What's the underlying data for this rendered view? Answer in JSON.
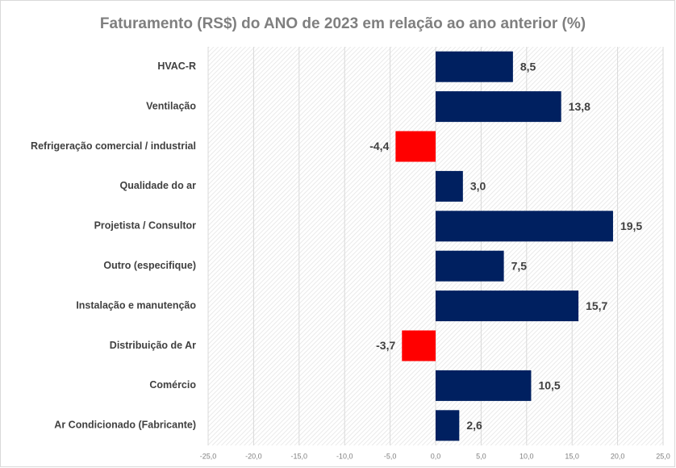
{
  "chart_data": {
    "type": "barh",
    "title": "Faturamento (RS$) do ANO de 2023  em relação ao ano anterior (%)",
    "categories": [
      "HVAC-R",
      "Ventilação",
      "Refrigeração comercial / industrial",
      "Qualidade do ar",
      "Projetista / Consultor",
      "Outro (especifique)",
      "Instalação e manutenção",
      "Distribuição de Ar",
      "Comércio",
      "Ar Condicionado (Fabricante)"
    ],
    "values": [
      8.5,
      13.8,
      -4.4,
      3.0,
      19.5,
      7.5,
      15.7,
      -3.7,
      10.5,
      2.6
    ],
    "value_labels": [
      "8,5",
      "13,8",
      "-4,4",
      "3,0",
      "19,5",
      "7,5",
      "15,7",
      "-3,7",
      "10,5",
      "2,6"
    ],
    "color": "#002060",
    "negative_color": "#ff0000",
    "xlim": [
      -25,
      25
    ],
    "xticks": [
      {
        "value": -25,
        "label": "-25,0"
      },
      {
        "value": -20,
        "label": "-20,0"
      },
      {
        "value": -15,
        "label": "-15,0"
      },
      {
        "value": -10,
        "label": "-10,0"
      },
      {
        "value": -5,
        "label": "-5,0"
      },
      {
        "value": 0,
        "label": "0,0"
      },
      {
        "value": 5,
        "label": "5,0"
      },
      {
        "value": 10,
        "label": "10,0"
      },
      {
        "value": 15,
        "label": "15,0"
      },
      {
        "value": 20,
        "label": "20,0"
      },
      {
        "value": 25,
        "label": "25,0"
      }
    ],
    "grid": true
  }
}
